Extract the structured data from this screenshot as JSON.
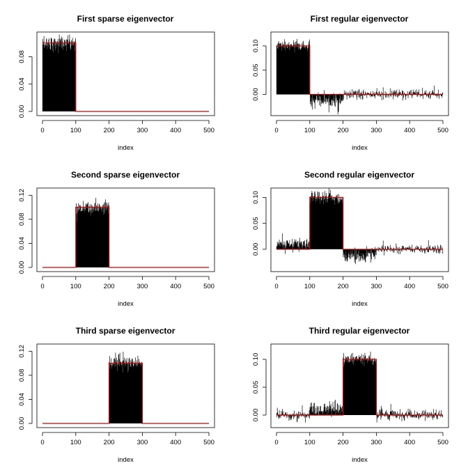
{
  "chart_data": [
    {
      "type": "line",
      "title": "First sparse eigenvector",
      "xlabel": "index",
      "ylabel": "",
      "xlim": [
        0,
        500
      ],
      "ylim": [
        0,
        0.11
      ],
      "xticks": [
        0,
        100,
        200,
        300,
        400,
        500
      ],
      "yticks": [
        0.0,
        0.04,
        0.08
      ],
      "ytick_labels": [
        "0.00",
        "0.04",
        "0.08"
      ],
      "baseline": 0,
      "step_segments": [
        {
          "from": 0,
          "to": 100,
          "value": 0.1
        }
      ],
      "series": [
        {
          "color": "#cc0000",
          "values": [
            [
              0,
              0.1
            ],
            [
              100,
              0.1
            ],
            [
              100,
              0
            ],
            [
              500,
              0
            ]
          ]
        }
      ],
      "noise_segments": [
        {
          "from": 0,
          "to": 100,
          "mean": 0.1,
          "sd": 0.006,
          "fill": true
        }
      ]
    },
    {
      "type": "line",
      "title": "First regular eigenvector",
      "xlabel": "index",
      "ylabel": "",
      "xlim": [
        0,
        500
      ],
      "ylim": [
        -0.035,
        0.12
      ],
      "xticks": [
        0,
        100,
        200,
        300,
        400,
        500
      ],
      "yticks": [
        0.0,
        0.05,
        0.1
      ],
      "ytick_labels": [
        "0.00",
        "0.05",
        "0.10"
      ],
      "baseline": 0,
      "series": [
        {
          "color": "#cc0000",
          "values": [
            [
              0,
              0.1
            ],
            [
              100,
              0.1
            ],
            [
              100,
              0
            ],
            [
              500,
              0
            ]
          ]
        }
      ],
      "noise_segments": [
        {
          "from": 0,
          "to": 100,
          "mean": 0.1,
          "sd": 0.006,
          "fill": true
        },
        {
          "from": 100,
          "to": 200,
          "mean": -0.015,
          "sd": 0.008,
          "fill": true
        },
        {
          "from": 200,
          "to": 500,
          "mean": 0.0,
          "sd": 0.005,
          "fill": false
        }
      ]
    },
    {
      "type": "line",
      "title": "Second sparse eigenvector",
      "xlabel": "index",
      "ylabel": "",
      "xlim": [
        0,
        500
      ],
      "ylim": [
        0,
        0.125
      ],
      "xticks": [
        0,
        100,
        200,
        300,
        400,
        500
      ],
      "yticks": [
        0.0,
        0.04,
        0.08,
        0.12
      ],
      "ytick_labels": [
        "0.00",
        "0.04",
        "0.08",
        "0.12"
      ],
      "baseline": 0,
      "series": [
        {
          "color": "#cc0000",
          "values": [
            [
              0,
              0
            ],
            [
              100,
              0
            ],
            [
              100,
              0.1
            ],
            [
              200,
              0.1
            ],
            [
              200,
              0
            ],
            [
              500,
              0
            ]
          ]
        }
      ],
      "noise_segments": [
        {
          "from": 100,
          "to": 200,
          "mean": 0.1,
          "sd": 0.007,
          "fill": true
        }
      ]
    },
    {
      "type": "line",
      "title": "Second regular eigenvector",
      "xlabel": "index",
      "ylabel": "",
      "xlim": [
        0,
        500
      ],
      "ylim": [
        -0.035,
        0.11
      ],
      "xticks": [
        0,
        100,
        200,
        300,
        400,
        500
      ],
      "yticks": [
        0.0,
        0.05,
        0.1
      ],
      "ytick_labels": [
        "0.00",
        "0.05",
        "0.10"
      ],
      "baseline": 0,
      "series": [
        {
          "color": "#cc0000",
          "values": [
            [
              0,
              0
            ],
            [
              100,
              0
            ],
            [
              100,
              0.1
            ],
            [
              200,
              0.1
            ],
            [
              200,
              0
            ],
            [
              500,
              0
            ]
          ]
        }
      ],
      "noise_segments": [
        {
          "from": 0,
          "to": 100,
          "mean": 0.01,
          "sd": 0.007,
          "fill": true
        },
        {
          "from": 100,
          "to": 200,
          "mean": 0.1,
          "sd": 0.006,
          "fill": true
        },
        {
          "from": 200,
          "to": 300,
          "mean": -0.012,
          "sd": 0.008,
          "fill": true
        },
        {
          "from": 300,
          "to": 500,
          "mean": 0.0,
          "sd": 0.005,
          "fill": false
        }
      ]
    },
    {
      "type": "line",
      "title": "Third sparse eigenvector",
      "xlabel": "index",
      "ylabel": "",
      "xlim": [
        0,
        500
      ],
      "ylim": [
        0,
        0.125
      ],
      "xticks": [
        0,
        100,
        200,
        300,
        400,
        500
      ],
      "yticks": [
        0.0,
        0.04,
        0.08,
        0.12
      ],
      "ytick_labels": [
        "0.00",
        "0.04",
        "0.08",
        "0.12"
      ],
      "baseline": 0,
      "series": [
        {
          "color": "#cc0000",
          "values": [
            [
              0,
              0
            ],
            [
              200,
              0
            ],
            [
              200,
              0.1
            ],
            [
              300,
              0.1
            ],
            [
              300,
              0
            ],
            [
              500,
              0
            ]
          ]
        }
      ],
      "noise_segments": [
        {
          "from": 200,
          "to": 300,
          "mean": 0.1,
          "sd": 0.007,
          "fill": true
        }
      ]
    },
    {
      "type": "line",
      "title": "Third regular eigenvector",
      "xlabel": "index",
      "ylabel": "",
      "xlim": [
        0,
        500
      ],
      "ylim": [
        -0.015,
        0.12
      ],
      "xticks": [
        0,
        100,
        200,
        300,
        400,
        500
      ],
      "yticks": [
        0.0,
        0.05,
        0.1
      ],
      "ytick_labels": [
        "0.00",
        "0.05",
        "0.10"
      ],
      "baseline": 0,
      "series": [
        {
          "color": "#cc0000",
          "values": [
            [
              0,
              0
            ],
            [
              200,
              0
            ],
            [
              200,
              0.1
            ],
            [
              300,
              0.1
            ],
            [
              300,
              0
            ],
            [
              500,
              0
            ]
          ]
        }
      ],
      "noise_segments": [
        {
          "from": 0,
          "to": 100,
          "mean": 0.0,
          "sd": 0.006,
          "fill": false
        },
        {
          "from": 100,
          "to": 200,
          "mean": 0.012,
          "sd": 0.007,
          "fill": true
        },
        {
          "from": 200,
          "to": 300,
          "mean": 0.1,
          "sd": 0.006,
          "fill": true
        },
        {
          "from": 300,
          "to": 500,
          "mean": 0.0,
          "sd": 0.005,
          "fill": false
        }
      ]
    }
  ]
}
